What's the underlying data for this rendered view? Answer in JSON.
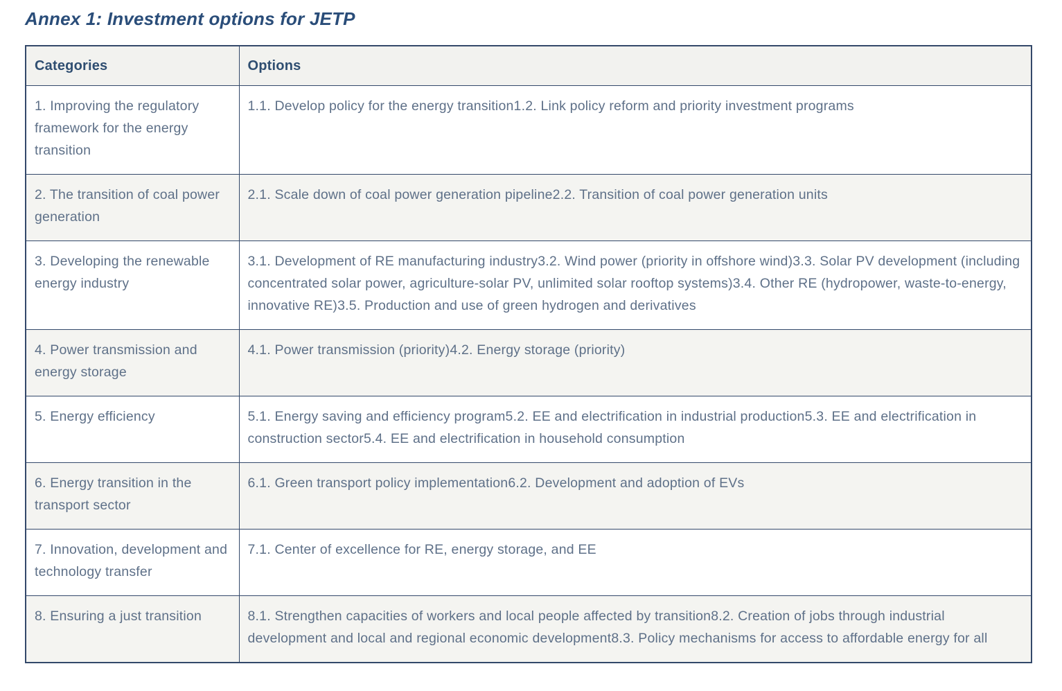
{
  "page": {
    "title": "Annex 1: Investment options for JETP"
  },
  "table": {
    "headers": {
      "categories": "Categories",
      "options": "Options"
    },
    "rows": [
      {
        "category": "1. Improving the regulatory framework for the energy transition",
        "options": [
          "1.1. Develop policy for the energy transition",
          "1.2. Link policy reform and priority investment programs"
        ]
      },
      {
        "category": "2. The transition of coal power generation",
        "options": [
          "2.1. Scale down of coal power generation pipeline",
          "2.2. Transition of coal power generation units"
        ]
      },
      {
        "category": "3. Developing the renewable energy industry",
        "options": [
          "3.1. Development of RE manufacturing industry",
          "3.2. Wind power (priority in offshore wind)",
          "3.3. Solar PV development (including concentrated solar power, agriculture-solar PV, unlimited solar rooftop systems)",
          "3.4. Other RE (hydropower, waste-to-energy, innovative RE)",
          "3.5. Production and use of green hydrogen and derivatives"
        ]
      },
      {
        "category": "4. Power transmission and energy storage",
        "options": [
          "4.1. Power transmission (priority)",
          "4.2. Energy storage (priority)"
        ]
      },
      {
        "category": "5. Energy efficiency",
        "options": [
          "5.1. Energy saving and efficiency program",
          "5.2. EE and electrification in industrial production",
          "5.3. EE and electrification in construction sector",
          "5.4. EE and electrification in household consumption"
        ]
      },
      {
        "category": "6. Energy transition in the transport sector",
        "options": [
          "6.1. Green transport policy implementation",
          "6.2. Development and adoption of EVs"
        ]
      },
      {
        "category": "7. Innovation, development and technology transfer",
        "options": [
          "7.1. Center of excellence for RE, energy storage, and EE"
        ]
      },
      {
        "category": "8. Ensuring a just transition",
        "options": [
          "8.1. Strengthen capacities of workers and local people affected by transition",
          "8.2. Creation of jobs through industrial development and local and regional economic development",
          "8.3. Policy mechanisms for access to affordable energy for all"
        ]
      }
    ],
    "colors": {
      "border": "#33486a",
      "stripe_background": "#f4f4f1",
      "header_background": "#f2f2ef",
      "title_text": "#2a4d79",
      "body_text": "#5e7088"
    }
  }
}
